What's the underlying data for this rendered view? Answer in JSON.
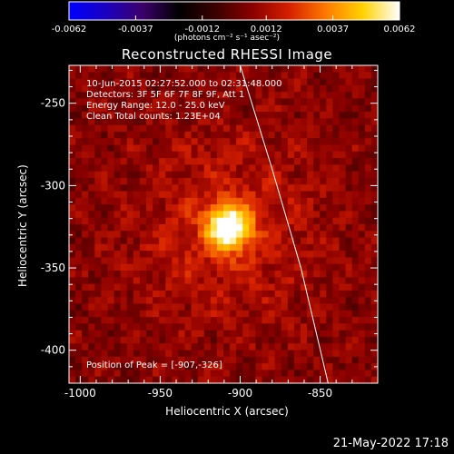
{
  "colorbar": {
    "tick_labels": [
      "-0.0062",
      "-0.0037",
      "-0.0012",
      "0.0012",
      "0.0037",
      "0.0062"
    ],
    "unit_label": "(photons cm⁻² s⁻¹ asec⁻²)",
    "colormap": [
      "#0000ff",
      "#1a00c0",
      "#3c006a",
      "#000000",
      "#3b0000",
      "#8b0000",
      "#d62000",
      "#ff7a00",
      "#ffd200",
      "#ffffff"
    ]
  },
  "title": "Reconstructed RHESSI Image",
  "info": {
    "time_range": "10-Jun-2015 02:27:52.000 to 02:31:48.000",
    "detectors": "Detectors: 3F 5F 6F 7F 8F 9F, Att 1",
    "energy": "Energy Range: 12.0 - 25.0 keV",
    "clean": "Clean    Total counts: 1.23E+04",
    "peak": "Position of Peak = [-907,-326]"
  },
  "axes": {
    "xlabel": "Heliocentric X (arcsec)",
    "ylabel": "Heliocentric Y (arcsec)",
    "xticks": [
      "-1000",
      "-950",
      "-900",
      "-850"
    ],
    "yticks": [
      "-250",
      "-300",
      "-350",
      "-400"
    ]
  },
  "timestamp": "21-May-2022 17:18",
  "chart_data": {
    "type": "heatmap",
    "title": "Reconstructed RHESSI Image",
    "xlabel": "Heliocentric X (arcsec)",
    "ylabel": "Heliocentric Y (arcsec)",
    "xlim": [
      -1007,
      -814
    ],
    "ylim": [
      -420,
      -227
    ],
    "xticks": [
      -1000,
      -950,
      -900,
      -850
    ],
    "yticks": [
      -250,
      -300,
      -350,
      -400
    ],
    "peak_position": [
      -907,
      -326
    ],
    "source": {
      "x": -907,
      "y": -326,
      "sigma_arcsec": 9,
      "peak_value": 0.0062
    },
    "colorbar_range": [
      -0.0062,
      0.0062
    ],
    "colorbar_ticks": [
      -0.0062,
      -0.0037,
      -0.0012,
      0.0012,
      0.0037,
      0.0062
    ],
    "limb_curve": [
      [
        -900,
        -227
      ],
      [
        -880,
        -290
      ],
      [
        -862,
        -350
      ],
      [
        -845,
        -420
      ]
    ],
    "grid": false
  }
}
